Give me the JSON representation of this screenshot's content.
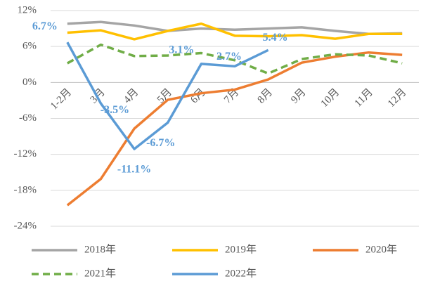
{
  "chart_data": {
    "type": "line",
    "categories": [
      "1-2月",
      "3月",
      "4月",
      "5月",
      "6月",
      "7月",
      "8月",
      "9月",
      "10月",
      "11月",
      "12月"
    ],
    "series": [
      {
        "name": "2018年",
        "color": "#a5a5a5",
        "values": [
          9.8,
          10.1,
          9.5,
          8.6,
          9.0,
          8.8,
          9.0,
          9.2,
          8.6,
          8.1,
          8.2
        ]
      },
      {
        "name": "2019年",
        "color": "#ffc000",
        "values": [
          8.3,
          8.7,
          7.2,
          8.6,
          9.8,
          7.8,
          7.7,
          7.9,
          7.3,
          8.1,
          8.1
        ]
      },
      {
        "name": "2020年",
        "color": "#ed7d31",
        "values": [
          -20.5,
          -16.1,
          -7.7,
          -2.9,
          -1.8,
          -1.2,
          0.5,
          3.3,
          4.3,
          5.0,
          4.6
        ]
      },
      {
        "name": "2021年",
        "color": "#70ad47",
        "dashed": true,
        "values": [
          3.2,
          6.3,
          4.4,
          4.5,
          4.9,
          3.7,
          1.5,
          3.9,
          4.7,
          4.5,
          3.2
        ]
      },
      {
        "name": "2022年",
        "color": "#5b9bd5",
        "values": [
          6.7,
          -3.5,
          -11.1,
          -6.7,
          3.1,
          2.7,
          5.4,
          null,
          null,
          null,
          null
        ],
        "value_labels": [
          "6.7%",
          "-3.5%",
          "-11.1%",
          "-6.7%",
          "3.1%",
          "2.7%",
          "5.4%",
          null,
          null,
          null,
          null
        ]
      }
    ],
    "ylim": [
      -24,
      12
    ],
    "yticks": [
      {
        "value": -24,
        "label": "-24%"
      },
      {
        "value": -18,
        "label": "-18%"
      },
      {
        "value": -12,
        "label": "-12%"
      },
      {
        "value": -6,
        "label": "-6%"
      },
      {
        "value": 0,
        "label": "0%"
      },
      {
        "value": 6,
        "label": "6%"
      },
      {
        "value": 12,
        "label": "12%"
      }
    ],
    "grid": true,
    "legend": "bottom"
  }
}
